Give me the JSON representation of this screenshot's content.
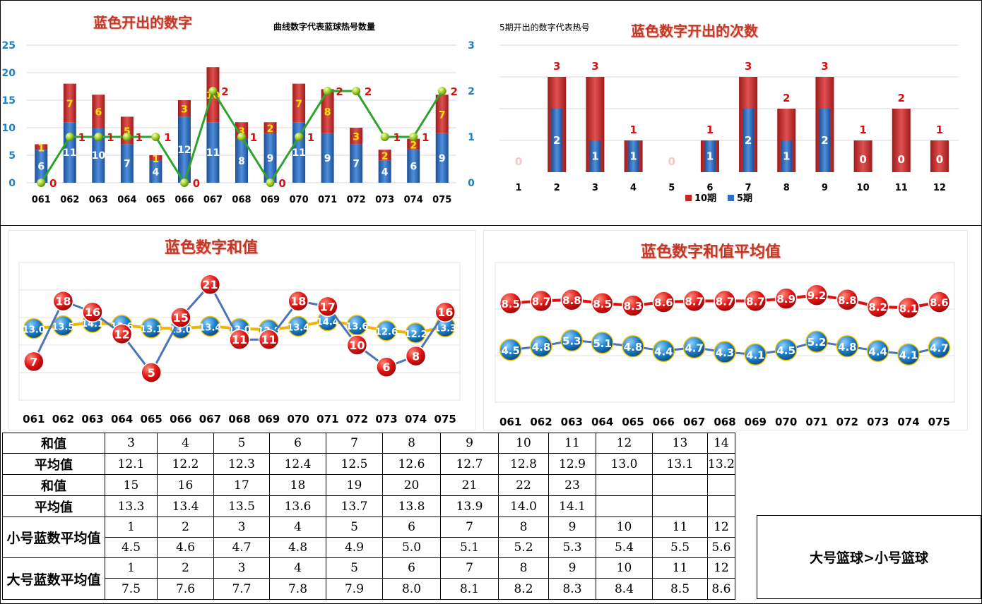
{
  "panel1": {
    "title": "蓝色开出的数字",
    "subtitle": "曲线数字代表蓝球热号数量",
    "chart_data": {
      "type": "bar",
      "stacked": true,
      "categories": [
        "061",
        "062",
        "063",
        "064",
        "065",
        "066",
        "067",
        "068",
        "069",
        "070",
        "071",
        "072",
        "073",
        "074",
        "075"
      ],
      "series": [
        {
          "values": [
            6,
            11,
            10,
            7,
            4,
            12,
            11,
            8,
            9,
            11,
            9,
            7,
            4,
            6,
            9
          ],
          "color": "#2f6fbf"
        },
        {
          "values": [
            1,
            7,
            6,
            5,
            1,
            3,
            10,
            3,
            2,
            7,
            8,
            3,
            2,
            2,
            7
          ],
          "color": "#c62828"
        },
        {
          "values": [
            0,
            1,
            1,
            1,
            1,
            0,
            2,
            1,
            0,
            1,
            2,
            2,
            1,
            1,
            2
          ],
          "color": "#2ea12e",
          "axis": "right",
          "line": true
        }
      ],
      "ylim": [
        0,
        25
      ],
      "yticks": [
        "0",
        "5",
        "10",
        "15",
        "20",
        "25"
      ],
      "y2lim": [
        0,
        3
      ],
      "y2ticks": [
        "0",
        "1",
        "2",
        "3"
      ]
    }
  },
  "panel2": {
    "title": "蓝色数字开出的次数",
    "subtitle": "5期开出的数字代表热号",
    "chart_data": {
      "type": "bar",
      "categories": [
        "1",
        "2",
        "3",
        "4",
        "5",
        "6",
        "7",
        "8",
        "9",
        "10",
        "11",
        "12"
      ],
      "series": [
        {
          "name": "10期",
          "values": [
            0,
            3,
            3,
            1,
            0,
            1,
            3,
            2,
            3,
            1,
            2,
            1
          ],
          "color": "#c62828"
        },
        {
          "name": "5期",
          "values": [
            0,
            2,
            1,
            1,
            0,
            1,
            2,
            1,
            2,
            0,
            0,
            0
          ],
          "color": "#2f6fbf"
        }
      ],
      "ylim": [
        0,
        4
      ]
    }
  },
  "panel3": {
    "title": "蓝色数字和值",
    "chart_data": {
      "type": "line",
      "categories": [
        "061",
        "062",
        "063",
        "064",
        "065",
        "066",
        "067",
        "068",
        "069",
        "070",
        "071",
        "072",
        "073",
        "074",
        "075"
      ],
      "series": [
        {
          "values": [
            7,
            18,
            16,
            12,
            5,
            15,
            21,
            11,
            11,
            18,
            17,
            10,
            6,
            8,
            16
          ],
          "color": "#c62828"
        },
        {
          "values": [
            "13.0",
            "13.5",
            "14.1",
            "13.6",
            "13.1",
            "13.0",
            "13.4",
            "13.0",
            "12.8",
            "13.4",
            "14.4",
            "13.6",
            "12.6",
            "12.2",
            "13.3"
          ],
          "color": "#1f7fc4"
        }
      ],
      "ylim": [
        0,
        25
      ]
    }
  },
  "panel4": {
    "title": "蓝色数字和值平均值",
    "chart_data": {
      "type": "line",
      "categories": [
        "061",
        "062",
        "063",
        "064",
        "065",
        "066",
        "067",
        "068",
        "069",
        "070",
        "071",
        "072",
        "073",
        "074",
        "075"
      ],
      "series": [
        {
          "values": [
            "8.5",
            "8.7",
            "8.8",
            "8.5",
            "8.3",
            "8.6",
            "8.7",
            "8.7",
            "8.7",
            "8.9",
            "9.2",
            "8.8",
            "8.2",
            "8.1",
            "8.6"
          ],
          "color": "#c62828"
        },
        {
          "values": [
            "4.5",
            "4.8",
            "5.3",
            "5.1",
            "4.8",
            "4.4",
            "4.7",
            "4.3",
            "4.1",
            "4.5",
            "5.2",
            "4.8",
            "4.4",
            "4.1",
            "4.7"
          ],
          "color": "#1f7fc4"
        }
      ],
      "ylim": [
        0,
        12
      ]
    }
  },
  "table": {
    "rows": [
      {
        "label": "和值",
        "cells": [
          "3",
          "4",
          "5",
          "6",
          "7",
          "8",
          "9",
          "10",
          "11",
          "12",
          "13",
          "14"
        ]
      },
      {
        "label": "平均值",
        "cells": [
          "12.1",
          "12.2",
          "12.3",
          "12.4",
          "12.5",
          "12.6",
          "12.7",
          "12.8",
          "12.9",
          "13.0",
          "13.1",
          "13.2"
        ]
      },
      {
        "label": "和值",
        "cells": [
          "15",
          "16",
          "17",
          "18",
          "19",
          "20",
          "21",
          "22",
          "23",
          "",
          "",
          ""
        ]
      },
      {
        "label": "平均值",
        "cells": [
          "13.3",
          "13.4",
          "13.5",
          "13.6",
          "13.7",
          "13.8",
          "13.9",
          "14.0",
          "14.1",
          "",
          "",
          ""
        ]
      },
      {
        "label": "小号蓝数平均值",
        "cells": [
          "1",
          "2",
          "3",
          "4",
          "5",
          "6",
          "7",
          "8",
          "9",
          "10",
          "11",
          "12"
        ]
      },
      {
        "label": "",
        "cells": [
          "4.5",
          "4.6",
          "4.7",
          "4.8",
          "4.9",
          "5.0",
          "5.1",
          "5.2",
          "5.3",
          "5.4",
          "5.5",
          "5.6"
        ]
      },
      {
        "label": "大号蓝数平均值",
        "cells": [
          "1",
          "2",
          "3",
          "4",
          "5",
          "6",
          "7",
          "8",
          "9",
          "10",
          "11",
          "12"
        ]
      },
      {
        "label": "",
        "cells": [
          "7.5",
          "7.6",
          "7.7",
          "7.8",
          "7.9",
          "8.0",
          "8.1",
          "8.2",
          "8.3",
          "8.4",
          "8.5",
          "8.6"
        ]
      }
    ],
    "note": "大号篮球>小号篮球"
  }
}
